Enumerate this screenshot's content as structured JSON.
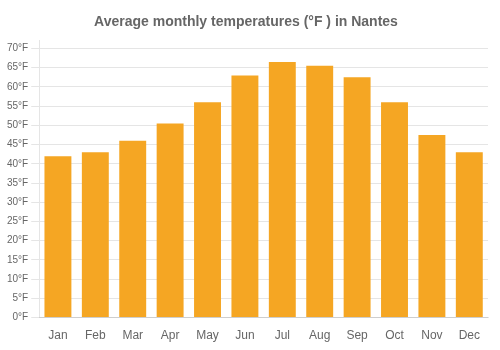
{
  "chart_data": {
    "type": "bar",
    "title": "Average monthly temperatures (°F ) in Nantes",
    "categories": [
      "Jan",
      "Feb",
      "Mar",
      "Apr",
      "May",
      "Jun",
      "Jul",
      "Aug",
      "Sep",
      "Oct",
      "Nov",
      "Dec"
    ],
    "values": [
      42,
      43,
      46,
      50.5,
      56,
      63,
      66.5,
      65.5,
      62.5,
      56,
      47.5,
      43
    ],
    "color": "#F5A623",
    "ylim": [
      0,
      72
    ],
    "yticks": [
      {
        "value": 0,
        "label": "0°F"
      },
      {
        "value": 5,
        "label": "5°F"
      },
      {
        "value": 10,
        "label": "10°F"
      },
      {
        "value": 15,
        "label": "15°F"
      },
      {
        "value": 20,
        "label": "20°F"
      },
      {
        "value": 25,
        "label": "25°F"
      },
      {
        "value": 30,
        "label": "30°F"
      },
      {
        "value": 35,
        "label": "35°F"
      },
      {
        "value": 40,
        "label": "40°F"
      },
      {
        "value": 45,
        "label": "45°F"
      },
      {
        "value": 50,
        "label": "50°F"
      },
      {
        "value": 55,
        "label": "55°F"
      },
      {
        "value": 60,
        "label": "60°F"
      },
      {
        "value": 65,
        "label": "65°F"
      },
      {
        "value": 70,
        "label": "70°F"
      }
    ],
    "grid": true
  }
}
